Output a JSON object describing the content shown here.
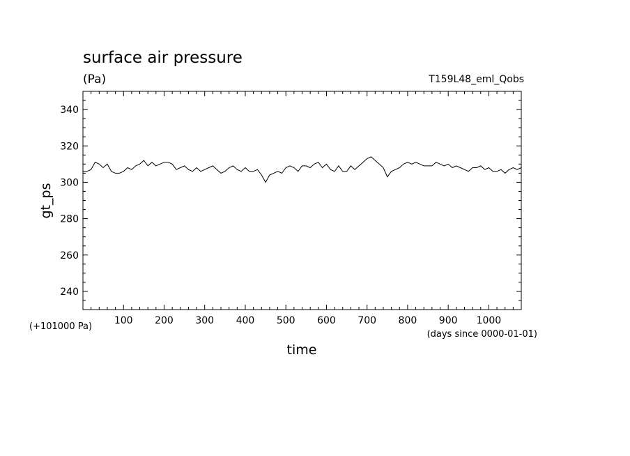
{
  "chart_data": {
    "type": "line",
    "title": "surface air pressure",
    "subtitle": "(Pa)",
    "run_label": "T159L48_eml_Qobs",
    "xlabel": "time",
    "ylabel": "gt_ps",
    "y_offset_label": "(+101000 Pa)",
    "x_units_label": "(days since 0000-01-01)",
    "xlim": [
      0,
      1080
    ],
    "ylim": [
      230,
      350
    ],
    "x_ticks": [
      100,
      200,
      300,
      400,
      500,
      600,
      700,
      800,
      900,
      1000
    ],
    "x_tick_labels": [
      "100",
      "200",
      "300",
      "400",
      "500",
      "600",
      "700",
      "800",
      "900",
      "1000"
    ],
    "y_ticks": [
      240,
      260,
      280,
      300,
      320,
      340
    ],
    "y_tick_labels": [
      "240",
      "260",
      "280",
      "300",
      "320",
      "340"
    ],
    "grid": false,
    "legend": "none",
    "line_color": "#000000",
    "series": [
      {
        "x": [
          0,
          10,
          20,
          30,
          40,
          50,
          60,
          70,
          80,
          90,
          100,
          110,
          120,
          130,
          140,
          150,
          160,
          170,
          180,
          190,
          200,
          210,
          220,
          230,
          240,
          250,
          260,
          270,
          280,
          290,
          300,
          310,
          320,
          330,
          340,
          350,
          360,
          370,
          380,
          390,
          400,
          410,
          420,
          430,
          440,
          450,
          460,
          470,
          480,
          490,
          500,
          510,
          520,
          530,
          540,
          550,
          560,
          570,
          580,
          590,
          600,
          610,
          620,
          630,
          640,
          650,
          660,
          670,
          680,
          690,
          700,
          710,
          720,
          730,
          740,
          750,
          760,
          770,
          780,
          790,
          800,
          810,
          820,
          830,
          840,
          850,
          860,
          870,
          880,
          890,
          900,
          910,
          920,
          930,
          940,
          950,
          960,
          970,
          980,
          990,
          1000,
          1010,
          1020,
          1030,
          1040,
          1050,
          1060,
          1070,
          1080
        ],
        "values": [
          306,
          306,
          307,
          311,
          310,
          308,
          310,
          306,
          305,
          305,
          306,
          308,
          307,
          309,
          310,
          312,
          309,
          311,
          309,
          310,
          311,
          311,
          310,
          307,
          308,
          309,
          307,
          306,
          308,
          306,
          307,
          308,
          309,
          307,
          305,
          306,
          308,
          309,
          307,
          306,
          308,
          306,
          306,
          307,
          304,
          300,
          304,
          305,
          306,
          305,
          308,
          309,
          308,
          306,
          309,
          309,
          308,
          310,
          311,
          308,
          310,
          307,
          306,
          309,
          306,
          306,
          309,
          307,
          309,
          311,
          313,
          314,
          312,
          310,
          308,
          303,
          306,
          307,
          308,
          310,
          311,
          310,
          311,
          310,
          309,
          309,
          309,
          311,
          310,
          309,
          310,
          308,
          309,
          308,
          307,
          306,
          308,
          308,
          309,
          307,
          308,
          306,
          306,
          307,
          305,
          307,
          308,
          307,
          308
        ]
      }
    ]
  }
}
